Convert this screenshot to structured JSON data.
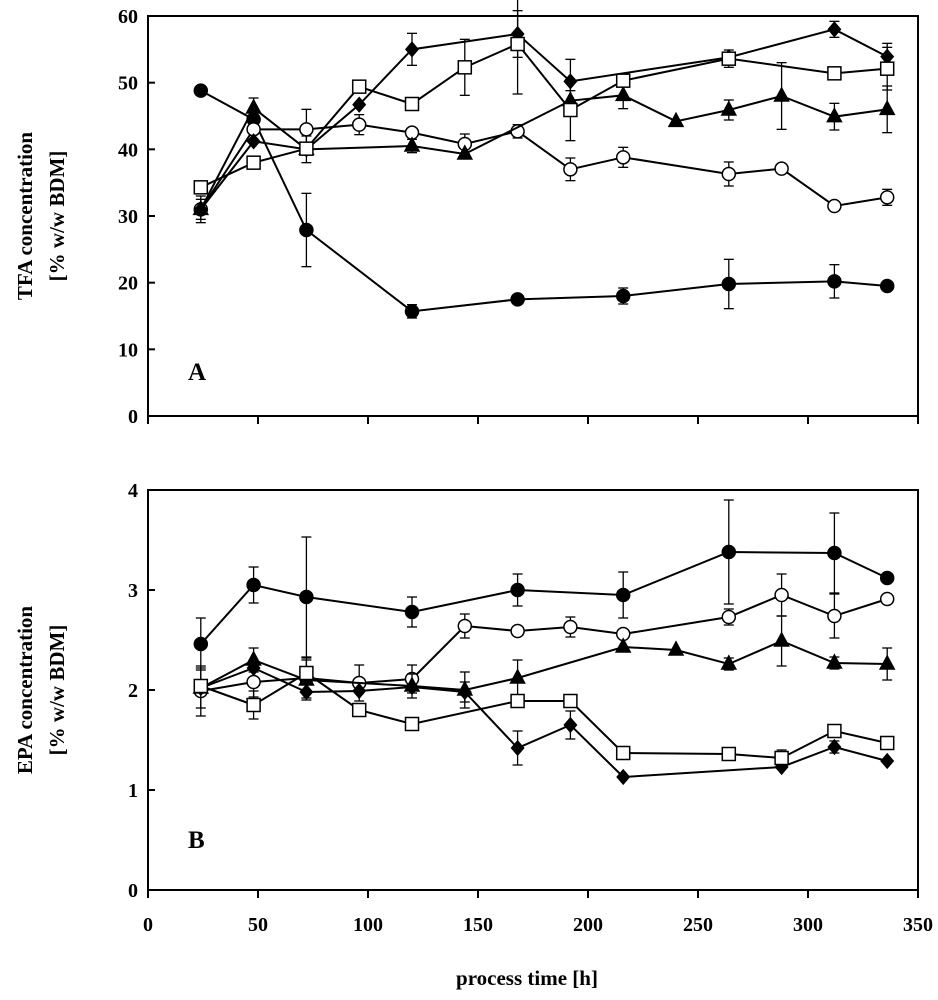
{
  "figure": {
    "xlabel": "process time [h]"
  },
  "chart_data": [
    {
      "type": "line",
      "panel": "A",
      "ylabel_line1": "TFA concentration",
      "ylabel_line2": "[% w/w BDM]",
      "ylim": [
        0,
        60
      ],
      "yticks": [
        0,
        10,
        20,
        30,
        40,
        50,
        60
      ],
      "xlim": [
        0,
        350
      ],
      "xticks": [
        0,
        50,
        100,
        150,
        200,
        250,
        300,
        350
      ],
      "series": [
        {
          "name": "filled circle",
          "marker": "circle",
          "fill": "#000000",
          "x": [
            24,
            48,
            72,
            120,
            168,
            216,
            264,
            312,
            336
          ],
          "y": [
            48.8,
            44.5,
            27.9,
            15.7,
            17.5,
            18.0,
            19.8,
            20.2,
            19.5
          ],
          "err": [
            0,
            1.5,
            5.5,
            1.0,
            0.5,
            1.2,
            3.7,
            2.5,
            0.5
          ]
        },
        {
          "name": "open circle",
          "marker": "circle",
          "fill": "#ffffff",
          "x": [
            24,
            48,
            72,
            96,
            120,
            144,
            168,
            192,
            216,
            264,
            288,
            312,
            336
          ],
          "y": [
            31.0,
            43.0,
            43.0,
            43.7,
            42.5,
            40.8,
            42.7,
            37.0,
            38.8,
            36.3,
            37.1,
            31.5,
            32.8
          ],
          "err": [
            2.0,
            1.5,
            3.0,
            1.5,
            0,
            1.5,
            1.0,
            1.7,
            1.5,
            1.8,
            0,
            0,
            1.2
          ]
        },
        {
          "name": "filled triangle",
          "marker": "triangle",
          "fill": "#000000",
          "x": [
            24,
            48,
            72,
            120,
            144,
            192,
            216,
            240,
            264,
            288,
            312,
            336
          ],
          "y": [
            31.0,
            46.2,
            40.0,
            40.5,
            39.3,
            47.3,
            48.1,
            44.2,
            45.9,
            48.0,
            44.9,
            46.0
          ],
          "err": [
            1.5,
            1.5,
            2.0,
            1.0,
            0,
            1.5,
            2.0,
            0,
            1.5,
            5.0,
            2.0,
            3.5
          ]
        },
        {
          "name": "filled diamond",
          "marker": "diamond",
          "fill": "#000000",
          "x": [
            24,
            48,
            72,
            96,
            120,
            168,
            192,
            264,
            312,
            336
          ],
          "y": [
            31.0,
            41.2,
            40.0,
            46.7,
            55.0,
            57.3,
            50.2,
            53.8,
            58.0,
            53.9
          ],
          "err": [
            0,
            0,
            0,
            0,
            2.4,
            3.5,
            3.3,
            0,
            1.2,
            2.0
          ]
        },
        {
          "name": "open square",
          "marker": "square",
          "fill": "#ffffff",
          "x": [
            24,
            48,
            72,
            96,
            120,
            144,
            168,
            192,
            216,
            264,
            312,
            336
          ],
          "y": [
            34.3,
            38.0,
            40.1,
            49.4,
            46.8,
            52.3,
            55.8,
            45.9,
            50.3,
            53.6,
            51.4,
            52.1
          ],
          "err": [
            0,
            0,
            0,
            0,
            0,
            4.2,
            7.5,
            4.6,
            0,
            1.3,
            0,
            3.2
          ]
        }
      ]
    },
    {
      "type": "line",
      "panel": "B",
      "ylabel_line1": "EPA concentration",
      "ylabel_line2": "[% w/w BDM]",
      "ylim": [
        0,
        4
      ],
      "yticks": [
        0,
        1,
        2,
        3,
        4
      ],
      "xlim": [
        0,
        350
      ],
      "xticks": [
        0,
        50,
        100,
        150,
        200,
        250,
        300,
        350
      ],
      "series": [
        {
          "name": "filled circle",
          "marker": "circle",
          "fill": "#000000",
          "x": [
            24,
            48,
            120,
            168,
            216,
            264,
            312,
            336,
            72
          ],
          "y": [
            2.46,
            3.05,
            2.78,
            3.0,
            2.95,
            3.38,
            3.37,
            3.12,
            2.93
          ],
          "err": [
            0.26,
            0.18,
            0.15,
            0.16,
            0.23,
            0.52,
            0.4,
            0,
            0.6
          ]
        },
        {
          "name": "open circle",
          "marker": "circle",
          "fill": "#ffffff",
          "x": [
            24,
            48,
            72,
            96,
            120,
            144,
            168,
            192,
            216,
            264,
            288,
            312,
            336
          ],
          "y": [
            1.99,
            2.08,
            2.12,
            2.07,
            2.11,
            2.64,
            2.59,
            2.63,
            2.56,
            2.73,
            2.95,
            2.74,
            2.91
          ],
          "err": [
            0.25,
            0.15,
            0.2,
            0.18,
            0.14,
            0.12,
            0,
            0.1,
            0,
            0.08,
            0.21,
            0.22,
            0
          ]
        },
        {
          "name": "filled triangle",
          "marker": "triangle",
          "fill": "#000000",
          "x": [
            24,
            48,
            72,
            120,
            144,
            168,
            216,
            240,
            264,
            288,
            312,
            336
          ],
          "y": [
            2.02,
            2.3,
            2.1,
            2.04,
            2.0,
            2.12,
            2.43,
            2.4,
            2.26,
            2.49,
            2.27,
            2.26
          ],
          "err": [
            0.2,
            0.12,
            0.2,
            0.12,
            0.18,
            0.18,
            0,
            0,
            0.06,
            0.25,
            0.06,
            0.16
          ]
        },
        {
          "name": "filled diamond",
          "marker": "diamond",
          "fill": "#000000",
          "x": [
            24,
            48,
            72,
            96,
            120,
            144,
            168,
            192,
            216,
            288,
            312,
            336
          ],
          "y": [
            2.02,
            2.22,
            1.98,
            1.99,
            2.03,
            1.98,
            1.42,
            1.65,
            1.13,
            1.23,
            1.43,
            1.29
          ],
          "err": [
            0,
            0,
            0,
            0,
            0,
            0.1,
            0.17,
            0.14,
            0,
            0,
            0.06,
            0
          ]
        },
        {
          "name": "open square",
          "marker": "square",
          "fill": "#ffffff",
          "x": [
            24,
            48,
            72,
            96,
            120,
            168,
            192,
            216,
            264,
            288,
            312,
            336
          ],
          "y": [
            2.04,
            1.85,
            2.17,
            1.8,
            1.66,
            1.89,
            1.89,
            1.37,
            1.36,
            1.32,
            1.59,
            1.47
          ],
          "err": [
            0,
            0.14,
            0,
            0,
            0,
            0,
            0,
            0,
            0,
            0.08,
            0,
            0
          ]
        }
      ]
    }
  ]
}
